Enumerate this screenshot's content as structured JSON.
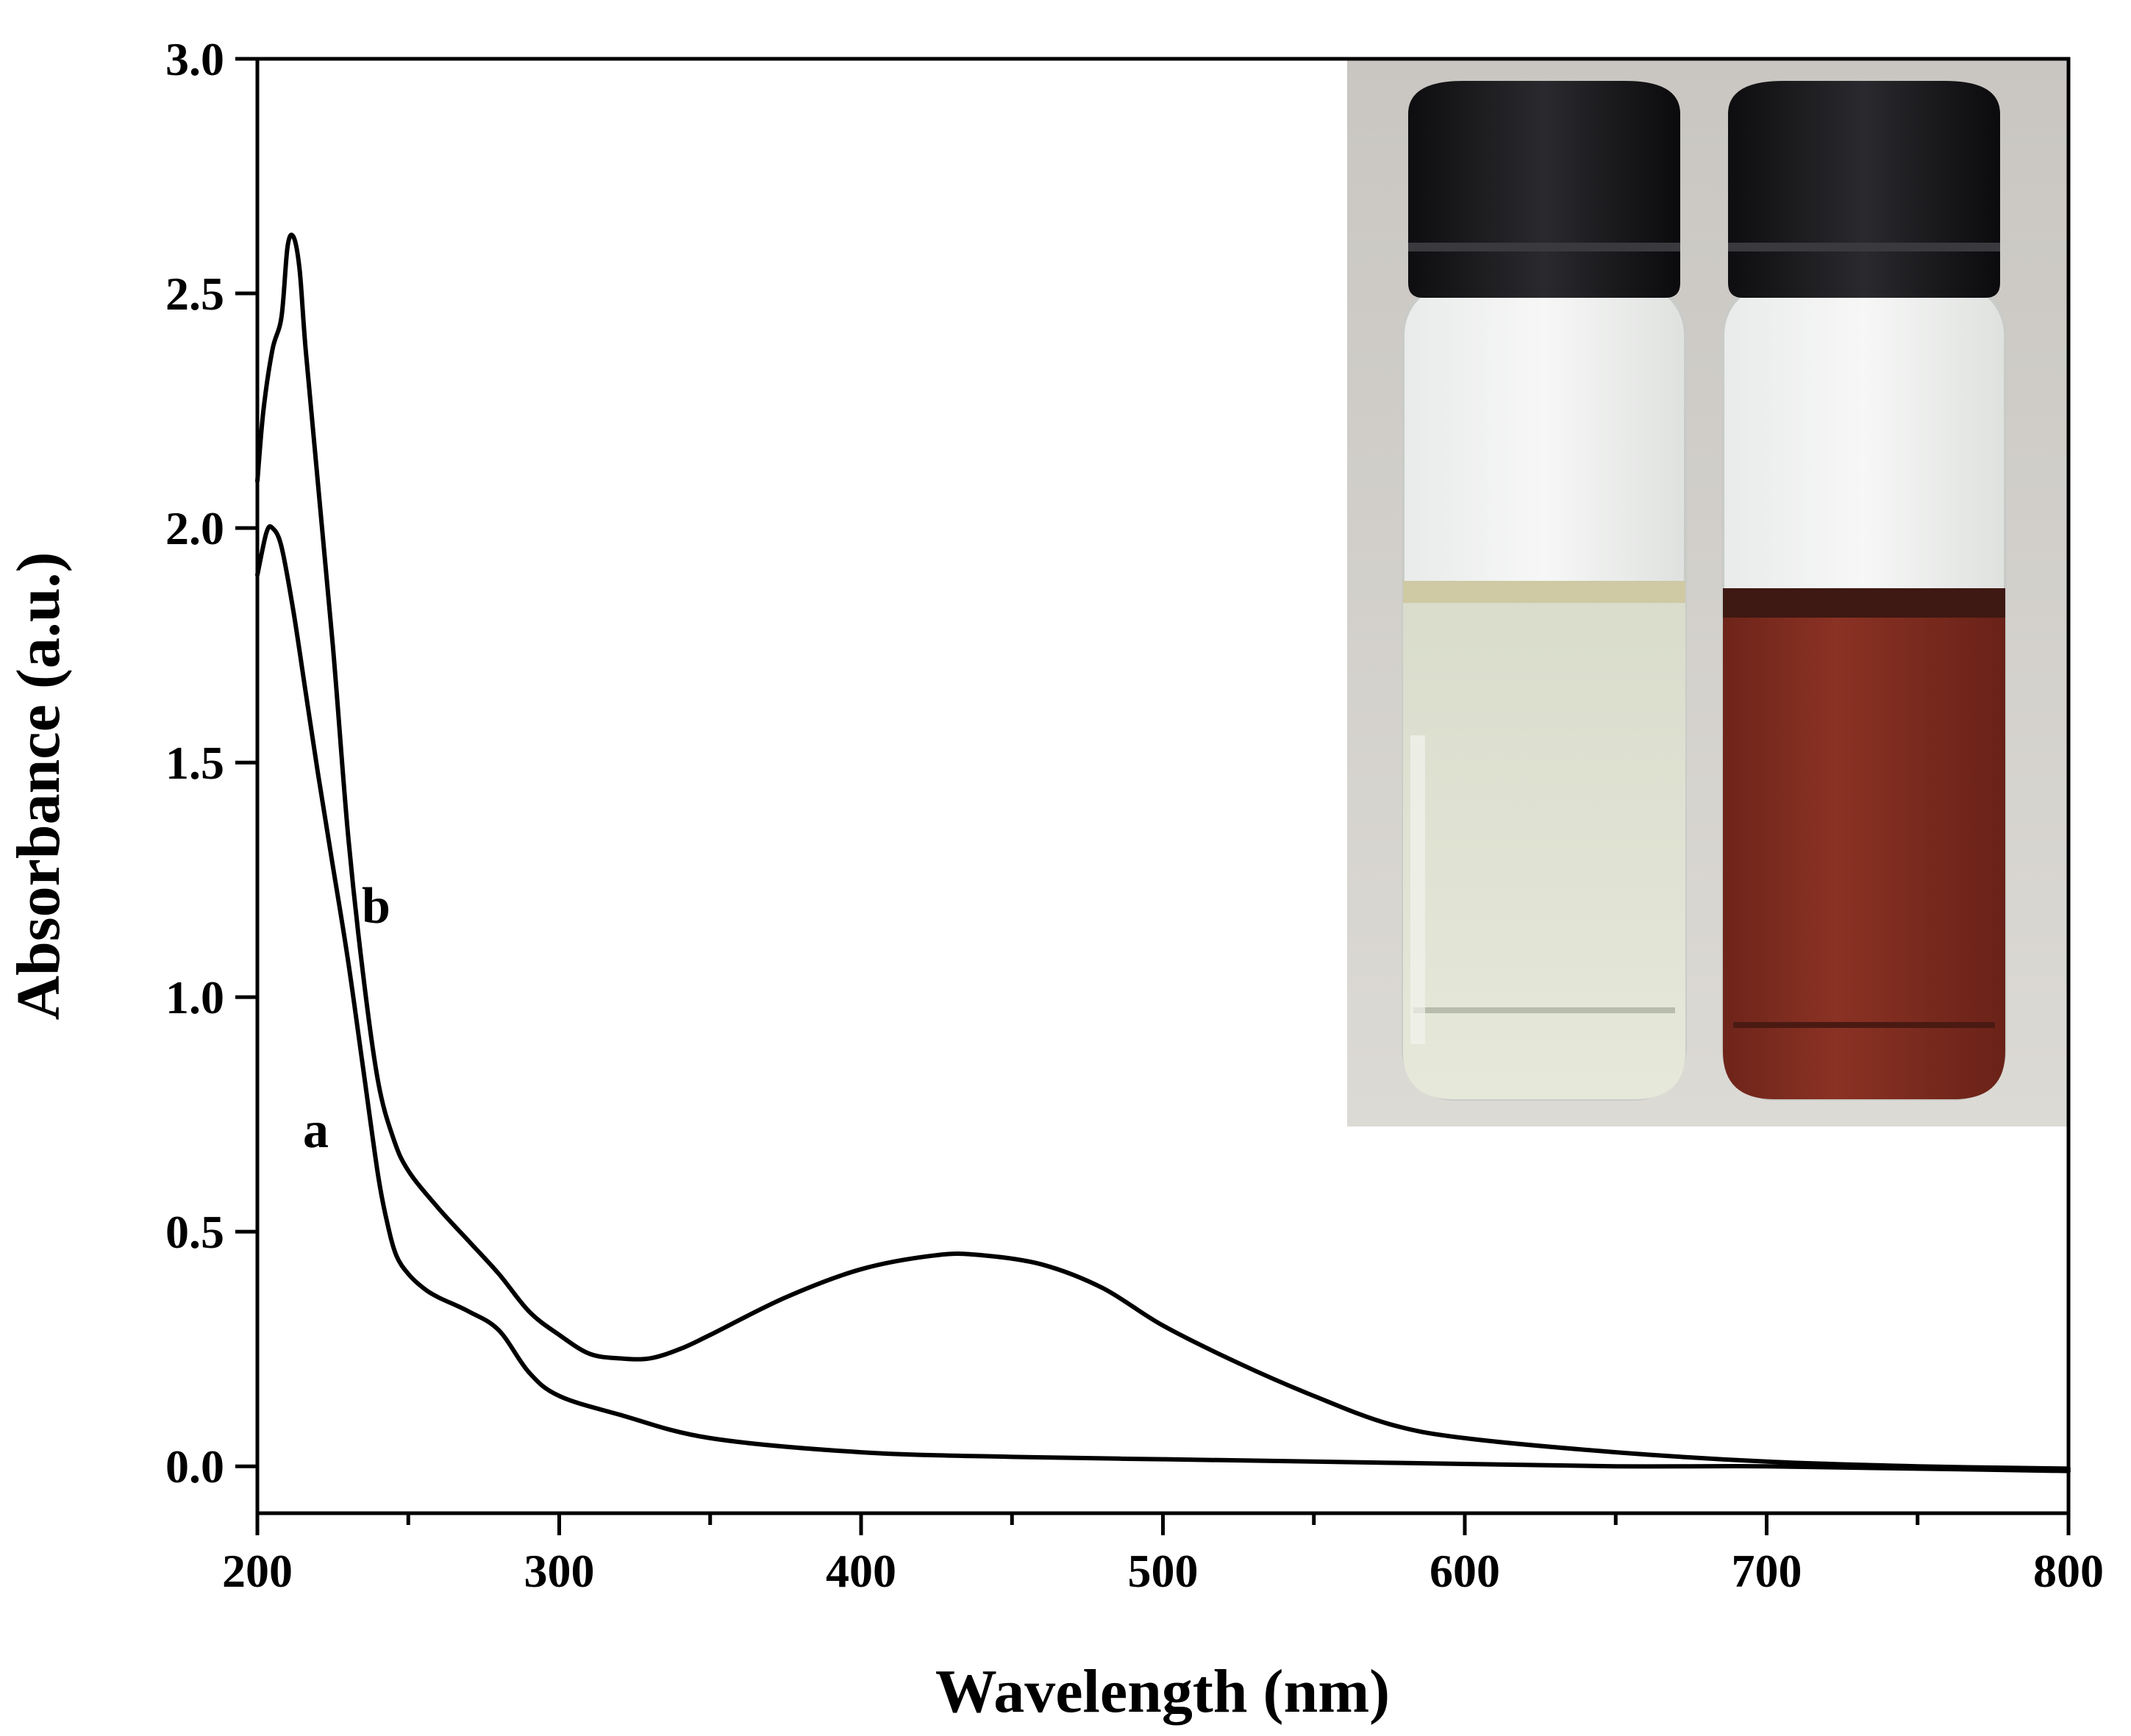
{
  "chart_data": {
    "type": "line",
    "xlabel": "Wavelength (nm)",
    "ylabel": "Absorbance (a.u.)",
    "xlim": [
      200,
      800
    ],
    "ylim": [
      -0.1,
      3.0
    ],
    "x_ticks": [
      200,
      300,
      400,
      500,
      600,
      700,
      800
    ],
    "x_tick_labels": [
      "200",
      "300",
      "400",
      "500",
      "600",
      "700",
      "800"
    ],
    "x_minor_step": 50,
    "y_ticks": [
      0.0,
      0.5,
      1.0,
      1.5,
      2.0,
      2.5,
      3.0
    ],
    "y_tick_labels": [
      "0.0",
      "0.5",
      "1.0",
      "1.5",
      "2.0",
      "2.5",
      "3.0"
    ],
    "y_minor_step": 0.25,
    "grid": false,
    "legend": "none",
    "series": [
      {
        "name": "a",
        "color": "#000000",
        "x": [
          200,
          203,
          205,
          208,
          212,
          216,
          220,
          225,
          230,
          235,
          240,
          243,
          246,
          250,
          255,
          260,
          270,
          280,
          290,
          300,
          320,
          350,
          400,
          450,
          500,
          550,
          600,
          650,
          700,
          750,
          800
        ],
        "y": [
          1.9,
          1.99,
          2.0,
          1.96,
          1.82,
          1.65,
          1.48,
          1.28,
          1.08,
          0.85,
          0.62,
          0.52,
          0.45,
          0.41,
          0.38,
          0.36,
          0.33,
          0.29,
          0.2,
          0.15,
          0.11,
          0.06,
          0.03,
          0.02,
          0.015,
          0.01,
          0.005,
          0.0,
          0.0,
          -0.005,
          -0.01
        ]
      },
      {
        "name": "b",
        "color": "#000000",
        "x": [
          200,
          202,
          205,
          208,
          210,
          212,
          214,
          216,
          220,
          225,
          230,
          235,
          240,
          245,
          250,
          260,
          270,
          280,
          290,
          300,
          310,
          320,
          330,
          340,
          350,
          375,
          400,
          425,
          440,
          460,
          480,
          500,
          525,
          550,
          575,
          600,
          650,
          700,
          750,
          800
        ],
        "y": [
          2.1,
          2.25,
          2.38,
          2.45,
          2.6,
          2.62,
          2.55,
          2.38,
          2.1,
          1.75,
          1.35,
          1.05,
          0.82,
          0.7,
          0.63,
          0.55,
          0.48,
          0.41,
          0.33,
          0.28,
          0.24,
          0.23,
          0.23,
          0.25,
          0.28,
          0.36,
          0.42,
          0.45,
          0.45,
          0.43,
          0.38,
          0.3,
          0.22,
          0.15,
          0.09,
          0.06,
          0.03,
          0.01,
          0.0,
          -0.005
        ]
      }
    ]
  }
}
